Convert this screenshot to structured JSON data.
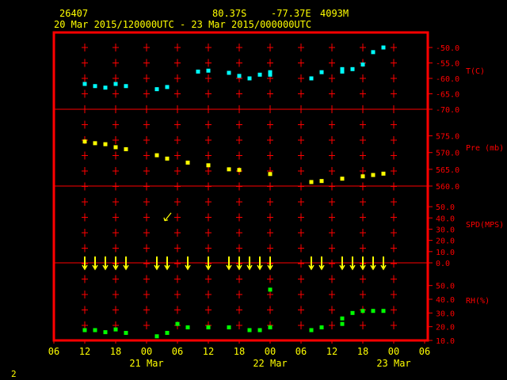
{
  "header": {
    "station": "26407",
    "lat": "80.37S",
    "lon": "-77.37E",
    "elev": "4093M",
    "period": "20 Mar 2015/120000UTC - 23 Mar 2015/000000UTC"
  },
  "page_number": "2",
  "colors": {
    "frame": "#ff0000",
    "text": "#ffff00",
    "temperature": "#00ffff",
    "pressure": "#ffff00",
    "wind": "#ffff00",
    "rh": "#00ff00",
    "background": "#000000"
  },
  "chart_data": [
    {
      "type": "scatter",
      "panel": "temperature",
      "ylabel": "T(C)",
      "ylim": [
        -70,
        -50
      ],
      "yticks": [
        -50.0,
        -55.0,
        -60.0,
        -65.0,
        -70.0
      ],
      "ytick_labels": [
        "-50.0",
        "-55.0",
        "-60.0",
        "-65.0",
        "-70.0"
      ],
      "x_hours": [
        0,
        2,
        4,
        6,
        8,
        14,
        16,
        22,
        24,
        28,
        30,
        32,
        34,
        36,
        36,
        44,
        46,
        50,
        50,
        52,
        54,
        56,
        58
      ],
      "values": [
        -61.8,
        -62.5,
        -63.0,
        -61.8,
        -62.5,
        -63.5,
        -62.8,
        -57.8,
        -57.5,
        -58.2,
        -59.2,
        -60.0,
        -58.8,
        -58.0,
        -58.8,
        -60.0,
        -58.0,
        -57.8,
        -57.0,
        -57.0,
        -55.5,
        -51.5,
        -50.0
      ]
    },
    {
      "type": "scatter",
      "panel": "pressure",
      "ylabel": "Pre (mb)",
      "ylim": [
        560,
        577.5
      ],
      "yticks": [
        575.0,
        570.0,
        565.0,
        560.0
      ],
      "ytick_labels": [
        "575.0",
        "570.0",
        "565.0",
        "560.0"
      ],
      "x_hours": [
        0,
        2,
        4,
        6,
        8,
        14,
        16,
        20,
        24,
        28,
        30,
        36,
        44,
        46,
        50,
        54,
        56,
        58
      ],
      "values": [
        573.3,
        572.8,
        572.5,
        571.6,
        571.0,
        569.2,
        568.2,
        567.0,
        566.2,
        565.0,
        564.8,
        563.6,
        561.2,
        561.5,
        562.2,
        562.9,
        563.3,
        563.7
      ]
    },
    {
      "type": "scatter",
      "panel": "wind",
      "ylabel": "SPD(MPS)",
      "ylim": [
        0,
        55
      ],
      "yticks": [
        0.0,
        10.0,
        20.0,
        30.0,
        40.0,
        50.0
      ],
      "ytick_labels": [
        "0.0",
        "10.0",
        "20.0",
        "30.0",
        "40.0",
        "50.0"
      ],
      "x_hours": [
        0,
        2,
        4,
        6,
        8,
        14,
        16,
        20,
        24,
        28,
        30,
        32,
        34,
        36,
        44,
        46,
        50,
        52,
        54,
        56,
        58
      ],
      "values": [
        0,
        0,
        0,
        0,
        0,
        0,
        0,
        0,
        0,
        0,
        0,
        0,
        0,
        0,
        0,
        0,
        0,
        0,
        0,
        0,
        0
      ]
    },
    {
      "type": "scatter",
      "panel": "rh",
      "ylabel": "RH(%)",
      "ylim": [
        10,
        55
      ],
      "yticks": [
        50.0,
        40.0,
        30.0,
        20.0,
        10.0
      ],
      "ytick_labels": [
        "50.0",
        "40.0",
        "30.0",
        "20.0",
        "10.0"
      ],
      "x_hours": [
        0,
        2,
        4,
        6,
        8,
        14,
        16,
        18,
        20,
        24,
        28,
        32,
        34,
        36,
        36,
        44,
        46,
        50,
        50,
        52,
        54,
        56,
        58
      ],
      "values": [
        17.5,
        17.5,
        16.0,
        18.0,
        15.5,
        13.0,
        15.5,
        22.0,
        19.5,
        19.5,
        19.5,
        17.5,
        17.5,
        19.5,
        47.0,
        17.5,
        19.5,
        22.0,
        26.0,
        30.0,
        31.5,
        31.5,
        31.5
      ]
    }
  ],
  "x_axis": {
    "start_hour_label": "06",
    "ticks": [
      "06",
      "12",
      "18",
      "00",
      "06",
      "12",
      "18",
      "00",
      "06",
      "12",
      "18",
      "00",
      "06"
    ],
    "dates": [
      {
        "label": "21 Mar",
        "at_tick": 3
      },
      {
        "label": "22 Mar",
        "at_tick": 7
      },
      {
        "label": "23 Mar",
        "at_tick": 11
      }
    ]
  }
}
